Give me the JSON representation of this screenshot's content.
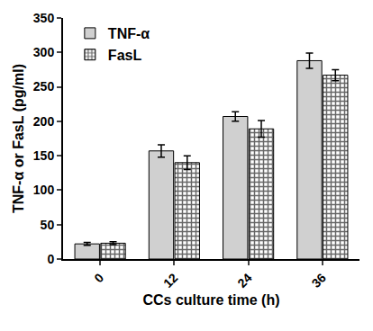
{
  "chart_data": {
    "type": "bar",
    "x_label": "CCs culture time (h)",
    "y_label": "TNF-α or FasL (pg/ml)",
    "categories": [
      "0",
      "12",
      "24",
      "36"
    ],
    "series": [
      {
        "name": "TNF-α",
        "color": "#d0d0d0",
        "marker": "solid",
        "values": [
          22,
          157,
          207,
          288
        ],
        "errors": [
          2,
          9,
          7,
          11
        ]
      },
      {
        "name": "FasL",
        "color": "#666666",
        "marker": "checkered",
        "values": [
          23,
          140,
          189,
          267
        ],
        "errors": [
          2,
          10,
          12,
          8
        ]
      }
    ],
    "ylim": [
      0,
      350
    ],
    "yticks": [
      0,
      50,
      100,
      150,
      200,
      250,
      300,
      350
    ],
    "grid": false,
    "legend": "top-left"
  }
}
